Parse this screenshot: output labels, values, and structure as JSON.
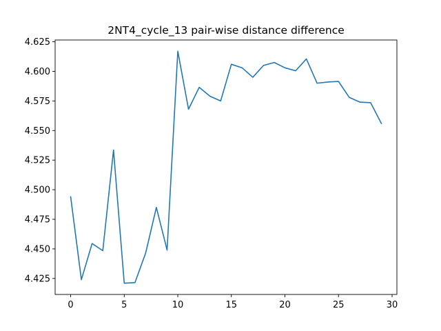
{
  "chart_data": {
    "type": "line",
    "title": "2NT4_cycle_13 pair-wise distance difference",
    "xlabel": "",
    "ylabel": "",
    "xlim": [
      -1.45,
      30.45
    ],
    "ylim": [
      4.4115,
      4.6265
    ],
    "xticks": [
      0,
      5,
      10,
      15,
      20,
      25,
      30
    ],
    "xtick_labels": [
      "0",
      "5",
      "10",
      "15",
      "20",
      "25",
      "30"
    ],
    "yticks": [
      4.425,
      4.45,
      4.475,
      4.5,
      4.525,
      4.55,
      4.575,
      4.6,
      4.625
    ],
    "ytick_labels": [
      "4.425",
      "4.450",
      "4.475",
      "4.500",
      "4.525",
      "4.550",
      "4.575",
      "4.600",
      "4.625"
    ],
    "grid": false,
    "legend": "none",
    "series": [
      {
        "color": "#1f77b4",
        "x": [
          0,
          1,
          2,
          3,
          4,
          5,
          6,
          7,
          8,
          9,
          10,
          11,
          12,
          13,
          14,
          15,
          16,
          17,
          18,
          19,
          20,
          21,
          22,
          23,
          24,
          25,
          26,
          27,
          28,
          29
        ],
        "y": [
          4.494,
          4.424,
          4.4545,
          4.4485,
          4.5335,
          4.421,
          4.4215,
          4.4465,
          4.485,
          4.449,
          4.617,
          4.568,
          4.5865,
          4.579,
          4.575,
          4.606,
          4.603,
          4.595,
          4.605,
          4.6075,
          4.603,
          4.6005,
          4.6105,
          4.59,
          4.591,
          4.5915,
          4.578,
          4.574,
          4.5735,
          4.556
        ]
      }
    ]
  }
}
